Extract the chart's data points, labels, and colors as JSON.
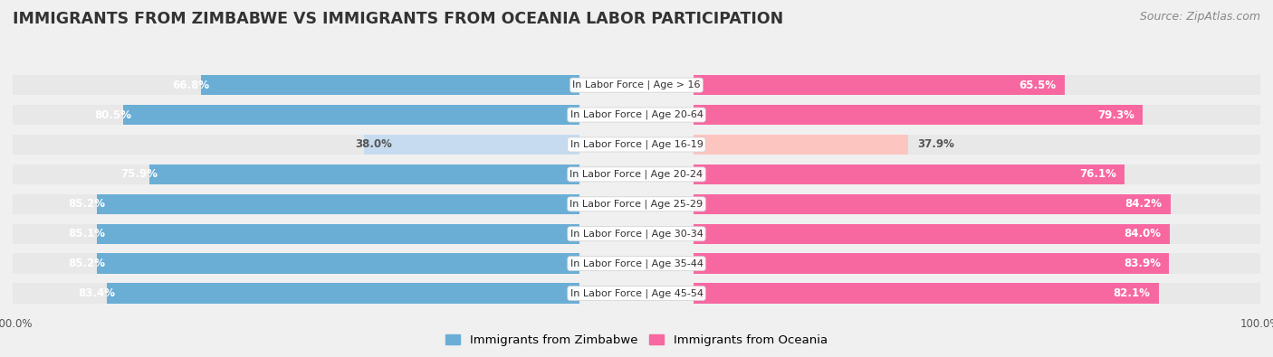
{
  "title": "IMMIGRANTS FROM ZIMBABWE VS IMMIGRANTS FROM OCEANIA LABOR PARTICIPATION",
  "source": "Source: ZipAtlas.com",
  "categories": [
    "In Labor Force | Age > 16",
    "In Labor Force | Age 20-64",
    "In Labor Force | Age 16-19",
    "In Labor Force | Age 20-24",
    "In Labor Force | Age 25-29",
    "In Labor Force | Age 30-34",
    "In Labor Force | Age 35-44",
    "In Labor Force | Age 45-54"
  ],
  "zimbabwe_values": [
    66.8,
    80.5,
    38.0,
    75.9,
    85.2,
    85.1,
    85.2,
    83.4
  ],
  "oceania_values": [
    65.5,
    79.3,
    37.9,
    76.1,
    84.2,
    84.0,
    83.9,
    82.1
  ],
  "zimbabwe_color": "#6aaed6",
  "oceania_color": "#f768a1",
  "zimbabwe_light_color": "#c6dbef",
  "oceania_light_color": "#fcc5c0",
  "row_bg_color": "#e8e8e8",
  "fig_bg_color": "#f0f0f0",
  "label_white": "#ffffff",
  "label_dark": "#555555",
  "legend_zimbabwe": "Immigrants from Zimbabwe",
  "legend_oceania": "Immigrants from Oceania",
  "max_value": 100.0,
  "bar_height": 0.68,
  "title_fontsize": 12.5,
  "source_fontsize": 9,
  "value_fontsize": 8.5,
  "category_fontsize": 8,
  "legend_fontsize": 9.5,
  "tick_fontsize": 8.5
}
